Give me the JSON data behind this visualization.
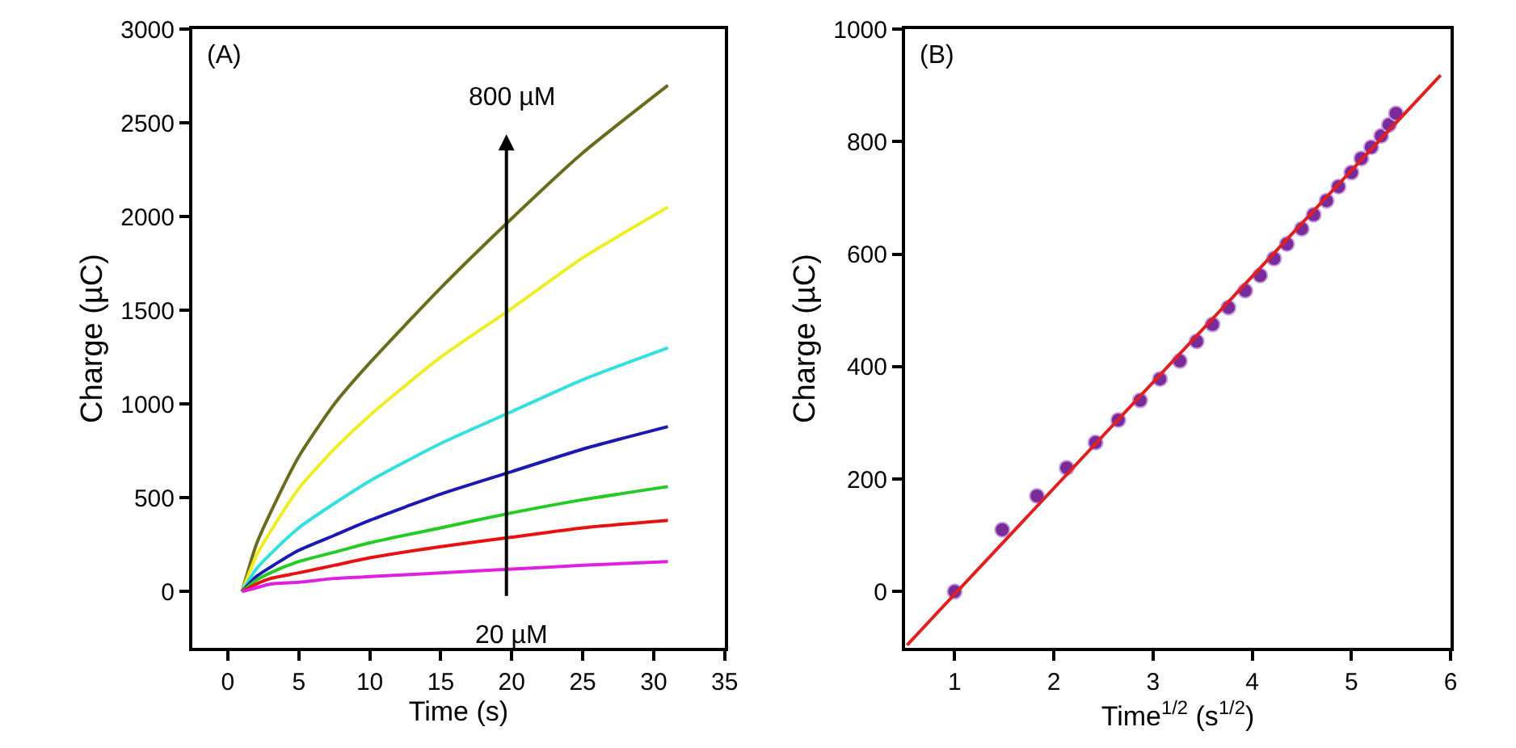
{
  "chart_data": [
    {
      "type": "line",
      "xlabel": "Time (s)",
      "ylabel": "Charge (µC)",
      "xlim": [
        -2.5,
        35
      ],
      "xticks": [
        0,
        5,
        10,
        15,
        20,
        25,
        30,
        35
      ],
      "ylim": [
        -300,
        3000
      ],
      "yticks": [
        0,
        500,
        1000,
        1500,
        2000,
        2500,
        3000
      ],
      "x": [
        1,
        2,
        3,
        5,
        7.5,
        10,
        15,
        20,
        25,
        31
      ],
      "series": [
        {
          "color": "#6b6b1e",
          "values": [
            0,
            250,
            420,
            720,
            1000,
            1220,
            1620,
            1990,
            2340,
            2700
          ]
        },
        {
          "color": "#eeee22",
          "values": [
            0,
            190,
            320,
            550,
            760,
            940,
            1250,
            1510,
            1780,
            2050
          ]
        },
        {
          "color": "#33e0e0",
          "values": [
            0,
            120,
            200,
            340,
            470,
            590,
            790,
            960,
            1130,
            1300
          ]
        },
        {
          "color": "#1a1ab0",
          "values": [
            0,
            80,
            130,
            220,
            300,
            380,
            520,
            640,
            760,
            880
          ]
        },
        {
          "color": "#22cc22",
          "values": [
            0,
            60,
            100,
            160,
            210,
            260,
            340,
            420,
            490,
            560
          ]
        },
        {
          "color": "#e81010",
          "values": [
            0,
            40,
            70,
            100,
            140,
            180,
            240,
            290,
            340,
            380
          ]
        },
        {
          "color": "#e020e0",
          "values": [
            0,
            20,
            40,
            50,
            70,
            80,
            100,
            120,
            140,
            160
          ]
        }
      ],
      "annotations": [
        "(A)",
        "800 µM",
        "20 µM"
      ]
    },
    {
      "type": "scatter",
      "xlabel": "Time$^{1/2}$ (s$^{1/2}$)",
      "ylabel": "Charge (µC)",
      "xlim": [
        0.5,
        6
      ],
      "xticks": [
        1,
        2,
        3,
        4,
        5,
        6
      ],
      "ylim": [
        -100,
        1000
      ],
      "yticks": [
        0,
        200,
        400,
        600,
        800,
        1000
      ],
      "series": [
        {
          "type": "scatter",
          "marker": "circle",
          "color": "#7b2a9a",
          "x": [
            1,
            1.48,
            1.83,
            2.13,
            2.42,
            2.65,
            2.87,
            3.07,
            3.27,
            3.44,
            3.6,
            3.76,
            3.93,
            4.08,
            4.22,
            4.35,
            4.5,
            4.62,
            4.75,
            4.87,
            5.0,
            5.1,
            5.2,
            5.3,
            5.38,
            5.45
          ],
          "values": [
            0,
            110,
            170,
            220,
            265,
            305,
            340,
            378,
            410,
            445,
            475,
            505,
            535,
            562,
            592,
            618,
            645,
            670,
            695,
            720,
            745,
            770,
            790,
            810,
            830,
            850
          ]
        },
        {
          "type": "line",
          "color": "#e02020",
          "x": [
            0.52,
            5.9
          ],
          "values": [
            -95,
            918
          ]
        }
      ],
      "annotations": [
        "(B)"
      ]
    }
  ]
}
